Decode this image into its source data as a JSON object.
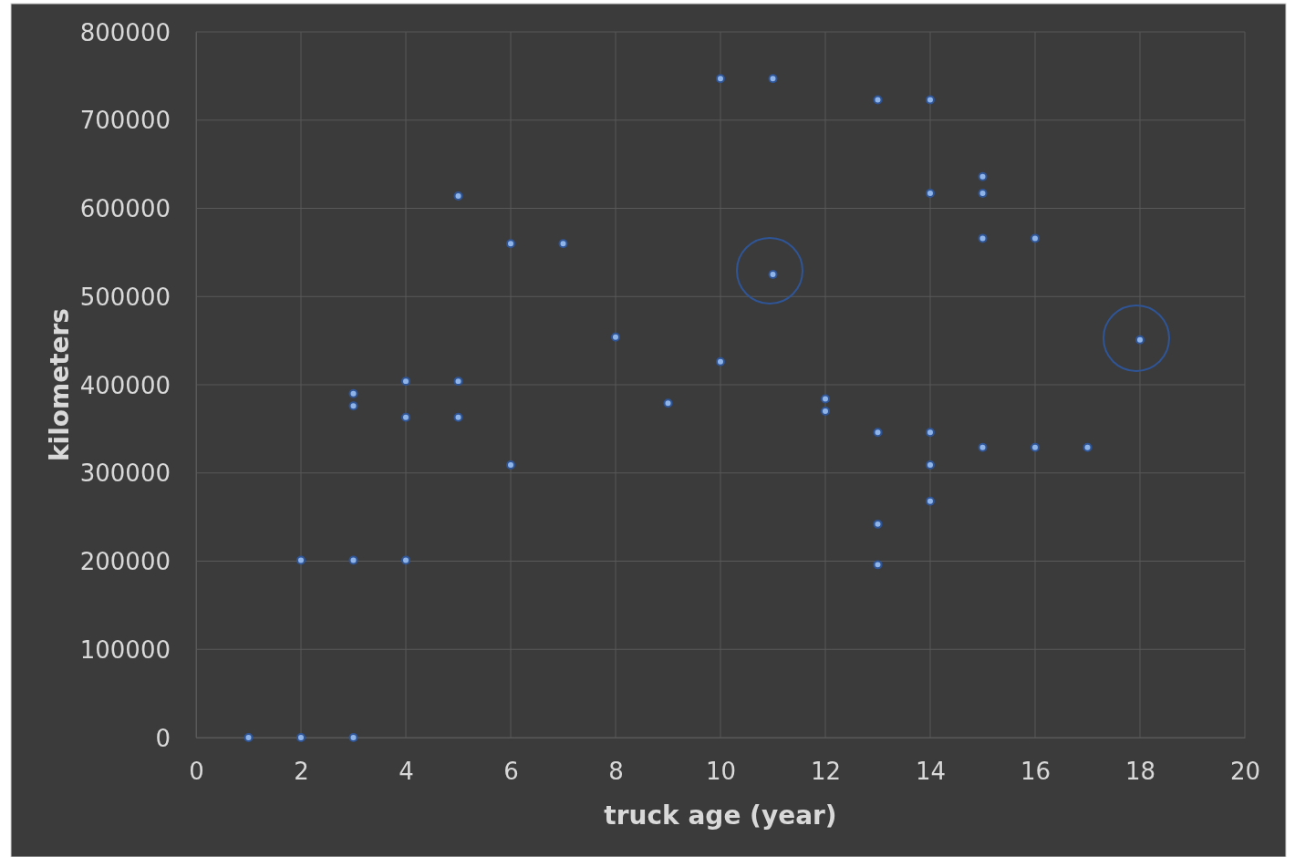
{
  "chart_data": {
    "type": "scatter",
    "xlabel": "truck age (year)",
    "ylabel": "kilometers",
    "x": [
      1,
      2,
      3,
      2,
      3,
      4,
      3,
      3,
      4,
      4,
      5,
      5,
      5,
      6,
      6,
      7,
      8,
      9,
      10,
      10,
      11,
      11,
      12,
      12,
      13,
      13,
      13,
      13,
      14,
      14,
      14,
      14,
      14,
      15,
      15,
      15,
      15,
      16,
      16,
      17,
      18
    ],
    "series": [
      {
        "color": "#8fb4e8",
        "values": [
          0,
          0,
          0,
          201000,
          201000,
          201000,
          390000,
          376000,
          404000,
          363000,
          614000,
          404000,
          363000,
          560000,
          309000,
          560000,
          454000,
          379000,
          747000,
          426000,
          747000,
          525000,
          384000,
          370000,
          723000,
          346000,
          242000,
          196000,
          723000,
          617000,
          346000,
          309000,
          268000,
          636000,
          617000,
          566000,
          329000,
          566000,
          329000,
          329000,
          451000
        ]
      }
    ],
    "xlim": [
      0,
      20
    ],
    "xticks": [
      0,
      2,
      4,
      6,
      8,
      10,
      12,
      14,
      16,
      18,
      20
    ],
    "ylim": [
      0,
      800000
    ],
    "yticks": [
      0,
      100000,
      200000,
      300000,
      400000,
      500000,
      600000,
      700000,
      800000
    ],
    "grid": true,
    "marker": "circle"
  }
}
